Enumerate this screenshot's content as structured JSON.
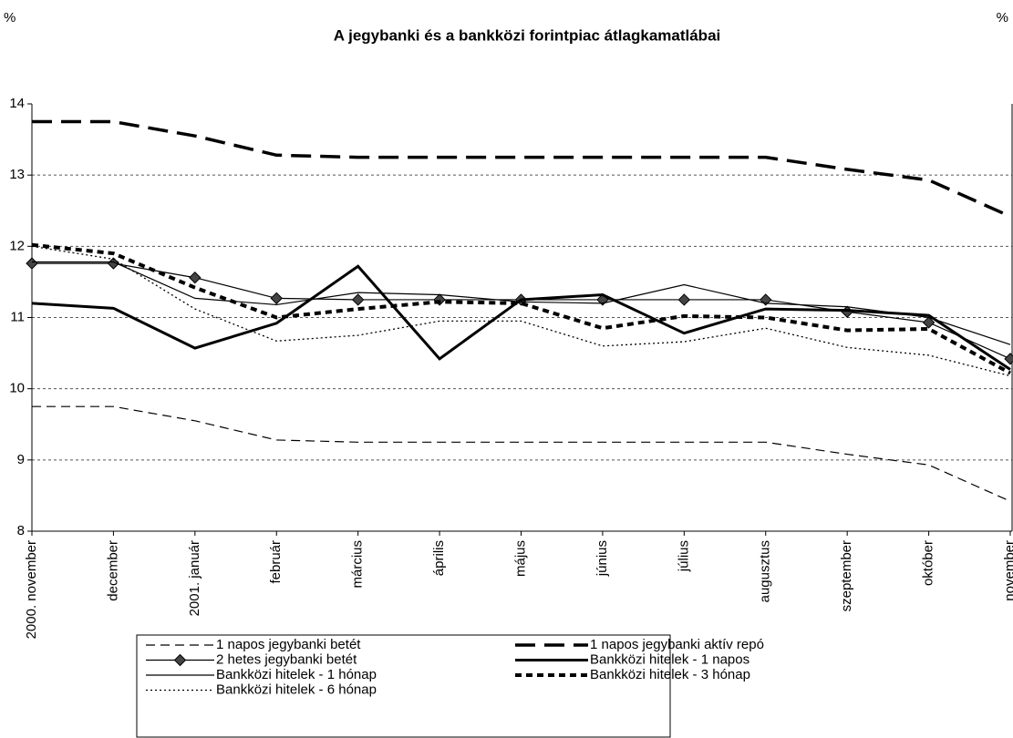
{
  "chart_data": {
    "type": "line",
    "title": "A jegybanki és a bankközi forintpiac átlagkamatlábai",
    "y_label": "%",
    "y2_label": "%",
    "categories": [
      "2000. november",
      "december",
      "2001. január",
      "február",
      "március",
      "április",
      "május",
      "június",
      "július",
      "augusztus",
      "szeptember",
      "október",
      "november"
    ],
    "ylim": [
      8,
      14
    ],
    "yticks": [
      8,
      9,
      10,
      11,
      12,
      13,
      14
    ],
    "grid": true,
    "series": [
      {
        "name": "1 napos jegybanki betét",
        "color": "#000000",
        "dash": "10,6",
        "width": 1.2,
        "values": [
          9.75,
          9.75,
          9.55,
          9.28,
          9.25,
          9.25,
          9.25,
          9.25,
          9.25,
          9.25,
          9.08,
          8.93,
          8.42
        ]
      },
      {
        "name": "1 napos jegybanki aktív repó",
        "color": "#000000",
        "dash": "22,10",
        "width": 3.5,
        "values": [
          13.75,
          13.75,
          13.55,
          13.28,
          13.25,
          13.25,
          13.25,
          13.25,
          13.25,
          13.25,
          13.08,
          12.93,
          12.42
        ]
      },
      {
        "name": "2 hetes jegybanki betét",
        "color": "#000000",
        "width": 1.2,
        "marker": "diamond",
        "values": [
          11.76,
          11.76,
          11.56,
          11.27,
          11.25,
          11.25,
          11.25,
          11.25,
          11.25,
          11.25,
          11.08,
          10.93,
          10.42
        ]
      },
      {
        "name": "Bankközi hitelek - 1 napos",
        "color": "#000000",
        "width": 3,
        "values": [
          11.2,
          11.13,
          10.57,
          10.92,
          11.72,
          10.42,
          11.25,
          11.32,
          10.78,
          11.12,
          11.1,
          11.03,
          10.27
        ]
      },
      {
        "name": "Bankközi hitelek - 1 hónap",
        "color": "#000000",
        "width": 1.2,
        "values": [
          11.78,
          11.78,
          11.27,
          11.18,
          11.35,
          11.32,
          11.22,
          11.2,
          11.46,
          11.2,
          11.15,
          11.0,
          10.62
        ]
      },
      {
        "name": "Bankközi hitelek - 3 hónap",
        "color": "#000000",
        "dash": "7,5",
        "width": 4,
        "values": [
          12.02,
          11.9,
          11.42,
          11.0,
          11.12,
          11.22,
          11.2,
          10.85,
          11.02,
          11.0,
          10.82,
          10.84,
          10.22
        ]
      },
      {
        "name": "Bankközi hitelek - 6 hónap",
        "color": "#000000",
        "dash": "2,3",
        "width": 1.3,
        "values": [
          12.0,
          11.82,
          11.12,
          10.67,
          10.75,
          10.95,
          10.95,
          10.6,
          10.66,
          10.85,
          10.58,
          10.47,
          10.18
        ]
      }
    ]
  }
}
